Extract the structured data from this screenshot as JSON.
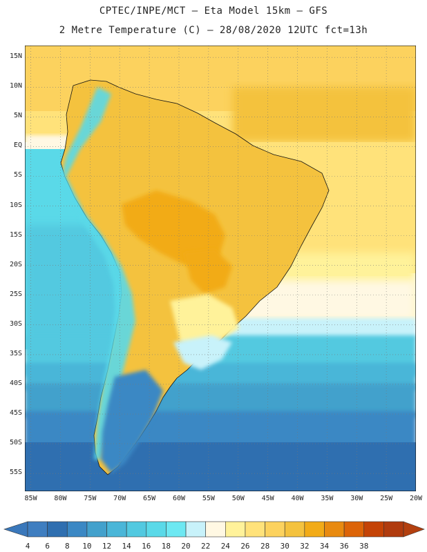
{
  "header": {
    "line1": "CPTEC/INPE/MCT –  Eta Model 15km – GFS",
    "line2": "2 Metre Temperature (C) – 28/08/2020 12UTC fct=13h"
  },
  "map": {
    "lon_range": [
      -86,
      -20
    ],
    "lat_range": [
      17,
      -58
    ],
    "lat_ticks": [
      "15N",
      "10N",
      "5N",
      "EQ",
      "5S",
      "10S",
      "15S",
      "20S",
      "25S",
      "30S",
      "35S",
      "40S",
      "45S",
      "50S",
      "55S"
    ],
    "lat_values": [
      15,
      10,
      5,
      0,
      -5,
      -10,
      -15,
      -20,
      -25,
      -30,
      -35,
      -40,
      -45,
      -50,
      -55
    ],
    "lon_ticks": [
      "85W",
      "80W",
      "75W",
      "70W",
      "65W",
      "60W",
      "55W",
      "50W",
      "45W",
      "40W",
      "35W",
      "30W",
      "25W",
      "20W"
    ],
    "lon_values": [
      -85,
      -80,
      -75,
      -70,
      -65,
      -60,
      -55,
      -50,
      -45,
      -40,
      -35,
      -30,
      -25,
      -20
    ],
    "grid": true
  },
  "colorbar": {
    "labels": [
      "4",
      "6",
      "8",
      "10",
      "12",
      "14",
      "16",
      "18",
      "20",
      "22",
      "24",
      "26",
      "28",
      "30",
      "32",
      "34",
      "36",
      "38"
    ],
    "colors": [
      "#3f7ec0",
      "#2f6fb0",
      "#3b88c4",
      "#43a1cc",
      "#4ab6d8",
      "#52c9e0",
      "#5ad9e8",
      "#6de8f2",
      "#c8f2fa",
      "#fff8e3",
      "#fff29a",
      "#ffe27a",
      "#fcd25e",
      "#f4c23e",
      "#f2ab17",
      "#e88a10",
      "#dc6408",
      "#c44306",
      "#b03b0e"
    ],
    "under_color": "#3a78bb",
    "over_color": "#b3400f"
  }
}
